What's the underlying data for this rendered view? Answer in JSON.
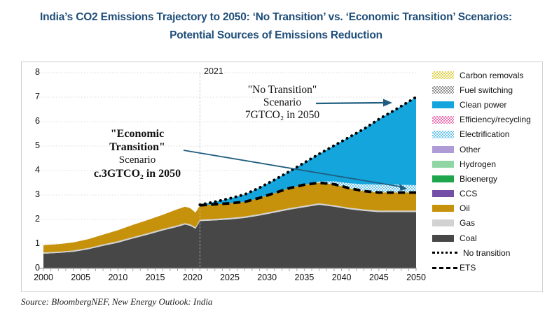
{
  "title": {
    "line1": "India’s CO2 Emissions Trajectory to 2050: ‘No Transition’ vs. ‘Economic Transition’ Scenarios:",
    "line2": "Potential Sources of Emissions Reduction"
  },
  "source": "Source: BloombergNEF, New Energy Outlook: India",
  "annotations": {
    "year_marker": "2021",
    "no_transition": {
      "line1": "\"No Transition\"",
      "line2": "Scenario",
      "line3": "7GTCO₂ in 2050"
    },
    "economic_transition": {
      "line1": "\"Economic",
      "line2": "Transition\"",
      "line3": "Scenario",
      "line4": "c.3GTCO₂ in 2050"
    }
  },
  "legend": [
    {
      "label": "Carbon removals",
      "style": "checker",
      "color": "#E2D24B"
    },
    {
      "label": "Fuel switching",
      "style": "checker",
      "color": "#8C8C8C"
    },
    {
      "label": "Clean power",
      "style": "solid",
      "color": "#14A5DC"
    },
    {
      "label": "Efficiency/recycling",
      "style": "checker",
      "color": "#F06EB0"
    },
    {
      "label": "Electrification",
      "style": "checker",
      "color": "#66C5EE"
    },
    {
      "label": "Other",
      "style": "solid",
      "color": "#AF9CD6"
    },
    {
      "label": "Hydrogen",
      "style": "solid",
      "color": "#8FD6A4"
    },
    {
      "label": "Bioenergy",
      "style": "solid",
      "color": "#1FA64C"
    },
    {
      "label": "CCS",
      "style": "solid",
      "color": "#7350A5"
    },
    {
      "label": "Oil",
      "style": "solid",
      "color": "#C7920B"
    },
    {
      "label": "Gas",
      "style": "solid",
      "color": "#D2D2D2"
    },
    {
      "label": "Coal",
      "style": "solid",
      "color": "#474747"
    },
    {
      "label": "No transition",
      "style": "dotted-line",
      "color": "#000000"
    },
    {
      "label": "ETS",
      "style": "dashed-line",
      "color": "#000000"
    }
  ],
  "chart_data": {
    "type": "area",
    "title": "India CO2 emissions trajectory to 2050, GtCO2: stacked sources under Economic Transition Scenario vs No Transition scenario",
    "xlabel": "",
    "ylabel": "",
    "xlim": [
      2000,
      2050
    ],
    "ylim": [
      0,
      8
    ],
    "x_ticks": [
      2000,
      2005,
      2010,
      2015,
      2020,
      2025,
      2030,
      2035,
      2040,
      2045,
      2050
    ],
    "y_ticks": [
      0,
      1,
      2,
      3,
      4,
      5,
      6,
      7,
      8
    ],
    "grid": "horizontal-dashed",
    "legend_position": "right",
    "year_marker": 2021,
    "years": [
      2000,
      2002,
      2004,
      2006,
      2008,
      2010,
      2012,
      2014,
      2016,
      2018,
      2019,
      2019.7,
      2020.4,
      2021,
      2023,
      2025,
      2027,
      2029,
      2031,
      2033,
      2035,
      2037,
      2039,
      2041,
      2043,
      2045,
      2047,
      2050
    ],
    "stack_series": [
      {
        "name": "Coal",
        "values": [
          0.6,
          0.63,
          0.68,
          0.78,
          0.92,
          1.05,
          1.22,
          1.38,
          1.55,
          1.7,
          1.79,
          1.74,
          1.62,
          1.93,
          1.96,
          2.0,
          2.06,
          2.16,
          2.28,
          2.4,
          2.5,
          2.6,
          2.52,
          2.42,
          2.35,
          2.3,
          2.3,
          2.3
        ]
      },
      {
        "name": "Gas",
        "values": [
          0.05,
          0.05,
          0.05,
          0.05,
          0.06,
          0.06,
          0.06,
          0.06,
          0.06,
          0.06,
          0.06,
          0.06,
          0.06,
          0.06,
          0.06,
          0.06,
          0.06,
          0.06,
          0.06,
          0.06,
          0.06,
          0.06,
          0.06,
          0.06,
          0.06,
          0.06,
          0.06,
          0.06
        ]
      },
      {
        "name": "Oil",
        "values": [
          0.3,
          0.31,
          0.33,
          0.36,
          0.4,
          0.45,
          0.5,
          0.54,
          0.58,
          0.66,
          0.67,
          0.66,
          0.6,
          0.59,
          0.6,
          0.6,
          0.6,
          0.66,
          0.74,
          0.82,
          0.86,
          0.84,
          0.86,
          0.8,
          0.75,
          0.74,
          0.74,
          0.74
        ]
      },
      {
        "name": "Electrification",
        "values": [
          0,
          0,
          0,
          0,
          0,
          0,
          0,
          0,
          0,
          0,
          0,
          0,
          0,
          0,
          0,
          0,
          0,
          0,
          0,
          0,
          0,
          0.05,
          0.12,
          0.2,
          0.28,
          0.33,
          0.33,
          0.3
        ]
      }
    ],
    "scenario_years": [
      2021,
      2023,
      2025,
      2027,
      2029,
      2031,
      2033,
      2035,
      2037,
      2039,
      2041,
      2043,
      2045,
      2047,
      2050
    ],
    "no_transition": [
      2.6,
      2.72,
      2.86,
      3.02,
      3.3,
      3.62,
      3.96,
      4.32,
      4.68,
      5.02,
      5.36,
      5.7,
      6.1,
      6.45,
      7.0
    ],
    "ets": [
      2.58,
      2.62,
      2.66,
      2.72,
      2.88,
      3.08,
      3.28,
      3.42,
      3.5,
      3.44,
      3.28,
      3.16,
      3.1,
      3.1,
      3.1
    ],
    "clean_power_note": "Clean power wedge fills the gap between the ETS stack top (plus electrification wedge) and the No transition dotted line, reaching ~3.6 GtCO2 width in 2050"
  },
  "colors": {
    "title": "#1F4E79",
    "coal": "#474747",
    "gas": "#D2D2D2",
    "oil": "#C7920B",
    "clean_power": "#14A5DC",
    "electrification": "#66C5EE",
    "no_transition_line": "#000000",
    "ets_line": "#000000",
    "grid": "#D9D9D9",
    "axis": "#A6A6A6",
    "marker_2021": "#BDBDBD",
    "annotation_arrow": "#1F5E80",
    "panel_border": "#CFCFCF"
  }
}
